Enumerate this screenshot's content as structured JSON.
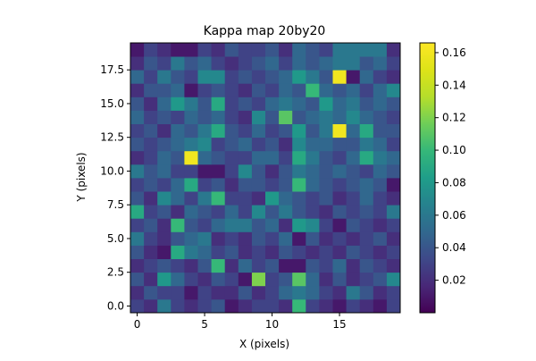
{
  "chart_data": {
    "type": "heatmap",
    "title": "Kappa map 20by20",
    "xlabel": "X (pixels)",
    "ylabel": "Y (pixels)",
    "xlim": [
      -0.5,
      19.5
    ],
    "ylim": [
      -0.5,
      19.5
    ],
    "x_ticks": [
      0,
      5,
      10,
      15
    ],
    "x_tick_labels": [
      "0",
      "5",
      "10",
      "15"
    ],
    "y_ticks": [
      0.0,
      2.5,
      5.0,
      7.5,
      10.0,
      12.5,
      15.0,
      17.5
    ],
    "y_tick_labels": [
      "0.0",
      "2.5",
      "5.0",
      "7.5",
      "10.0",
      "12.5",
      "15.0",
      "17.5"
    ],
    "colormap": "viridis",
    "origin": "lower",
    "colorbar": {
      "vmin": 0.0,
      "vmax": 0.166,
      "ticks": [
        0.02,
        0.04,
        0.06,
        0.08,
        0.1,
        0.12,
        0.14,
        0.16
      ],
      "tick_labels": [
        "0.02",
        "0.04",
        "0.06",
        "0.08",
        "0.10",
        "0.12",
        "0.14",
        "0.16"
      ]
    },
    "grid": false,
    "rows": [
      [
        0.03,
        0.02,
        0.06,
        0.03,
        0.02,
        0.03,
        0.04,
        0.01,
        0.02,
        0.03,
        0.03,
        0.02,
        0.1,
        0.03,
        0.02,
        0.01,
        0.03,
        0.02,
        0.01,
        0.03
      ],
      [
        0.02,
        0.04,
        0.03,
        0.03,
        0.01,
        0.03,
        0.02,
        0.02,
        0.04,
        0.02,
        0.03,
        0.05,
        0.06,
        0.05,
        0.03,
        0.02,
        0.06,
        0.04,
        0.02,
        0.03
      ],
      [
        0.04,
        0.02,
        0.08,
        0.05,
        0.03,
        0.02,
        0.04,
        0.03,
        0.01,
        0.12,
        0.03,
        0.04,
        0.11,
        0.05,
        0.02,
        0.04,
        0.02,
        0.03,
        0.04,
        0.07
      ],
      [
        0.02,
        0.03,
        0.04,
        0.03,
        0.02,
        0.04,
        0.1,
        0.02,
        0.05,
        0.03,
        0.04,
        0.01,
        0.01,
        0.04,
        0.03,
        0.05,
        0.02,
        0.04,
        0.03,
        0.02
      ],
      [
        0.04,
        0.02,
        0.01,
        0.09,
        0.06,
        0.05,
        0.03,
        0.04,
        0.02,
        0.03,
        0.02,
        0.04,
        0.03,
        0.02,
        0.03,
        0.02,
        0.04,
        0.03,
        0.02,
        0.03
      ],
      [
        0.06,
        0.03,
        0.02,
        0.04,
        0.05,
        0.06,
        0.02,
        0.03,
        0.02,
        0.04,
        0.03,
        0.05,
        0.01,
        0.04,
        0.02,
        0.03,
        0.02,
        0.03,
        0.04,
        0.02
      ],
      [
        0.03,
        0.04,
        0.02,
        0.1,
        0.04,
        0.03,
        0.05,
        0.06,
        0.06,
        0.04,
        0.05,
        0.02,
        0.08,
        0.07,
        0.03,
        0.01,
        0.04,
        0.03,
        0.02,
        0.03
      ],
      [
        0.09,
        0.03,
        0.04,
        0.02,
        0.05,
        0.04,
        0.03,
        0.05,
        0.03,
        0.07,
        0.04,
        0.06,
        0.04,
        0.03,
        0.02,
        0.04,
        0.03,
        0.04,
        0.03,
        0.06
      ],
      [
        0.04,
        0.02,
        0.07,
        0.05,
        0.03,
        0.06,
        0.1,
        0.03,
        0.03,
        0.02,
        0.08,
        0.05,
        0.04,
        0.03,
        0.04,
        0.02,
        0.03,
        0.05,
        0.03,
        0.02
      ],
      [
        0.03,
        0.04,
        0.03,
        0.05,
        0.09,
        0.03,
        0.04,
        0.02,
        0.04,
        0.04,
        0.03,
        0.04,
        0.1,
        0.05,
        0.04,
        0.03,
        0.04,
        0.05,
        0.04,
        0.01
      ],
      [
        0.06,
        0.04,
        0.05,
        0.03,
        0.03,
        0.01,
        0.01,
        0.03,
        0.07,
        0.04,
        0.02,
        0.04,
        0.06,
        0.05,
        0.04,
        0.05,
        0.04,
        0.03,
        0.05,
        0.04
      ],
      [
        0.02,
        0.03,
        0.05,
        0.04,
        0.16,
        0.05,
        0.04,
        0.03,
        0.03,
        0.05,
        0.05,
        0.03,
        0.09,
        0.06,
        0.04,
        0.03,
        0.05,
        0.09,
        0.06,
        0.05
      ],
      [
        0.04,
        0.03,
        0.04,
        0.05,
        0.06,
        0.07,
        0.03,
        0.04,
        0.05,
        0.03,
        0.04,
        0.02,
        0.07,
        0.05,
        0.05,
        0.04,
        0.04,
        0.06,
        0.05,
        0.03
      ],
      [
        0.03,
        0.04,
        0.02,
        0.05,
        0.04,
        0.06,
        0.09,
        0.04,
        0.03,
        0.05,
        0.03,
        0.04,
        0.08,
        0.04,
        0.06,
        0.16,
        0.05,
        0.09,
        0.04,
        0.04
      ],
      [
        0.05,
        0.03,
        0.04,
        0.03,
        0.05,
        0.04,
        0.05,
        0.03,
        0.02,
        0.07,
        0.04,
        0.11,
        0.04,
        0.05,
        0.06,
        0.05,
        0.07,
        0.05,
        0.04,
        0.03
      ],
      [
        0.04,
        0.02,
        0.05,
        0.08,
        0.06,
        0.04,
        0.09,
        0.03,
        0.04,
        0.03,
        0.05,
        0.06,
        0.05,
        0.04,
        0.08,
        0.05,
        0.06,
        0.04,
        0.05,
        0.04
      ],
      [
        0.02,
        0.04,
        0.04,
        0.05,
        0.01,
        0.03,
        0.04,
        0.03,
        0.02,
        0.04,
        0.03,
        0.05,
        0.04,
        0.1,
        0.05,
        0.04,
        0.05,
        0.03,
        0.05,
        0.07
      ],
      [
        0.05,
        0.03,
        0.06,
        0.04,
        0.03,
        0.07,
        0.07,
        0.03,
        0.04,
        0.03,
        0.04,
        0.05,
        0.08,
        0.06,
        0.04,
        0.16,
        0.01,
        0.05,
        0.03,
        0.02
      ],
      [
        0.02,
        0.04,
        0.03,
        0.06,
        0.04,
        0.05,
        0.03,
        0.02,
        0.03,
        0.04,
        0.05,
        0.03,
        0.05,
        0.04,
        0.05,
        0.06,
        0.06,
        0.04,
        0.05,
        0.03
      ],
      [
        0.01,
        0.03,
        0.02,
        0.01,
        0.01,
        0.03,
        0.02,
        0.04,
        0.03,
        0.03,
        0.04,
        0.02,
        0.05,
        0.04,
        0.03,
        0.06,
        0.06,
        0.06,
        0.06,
        0.02
      ]
    ]
  }
}
